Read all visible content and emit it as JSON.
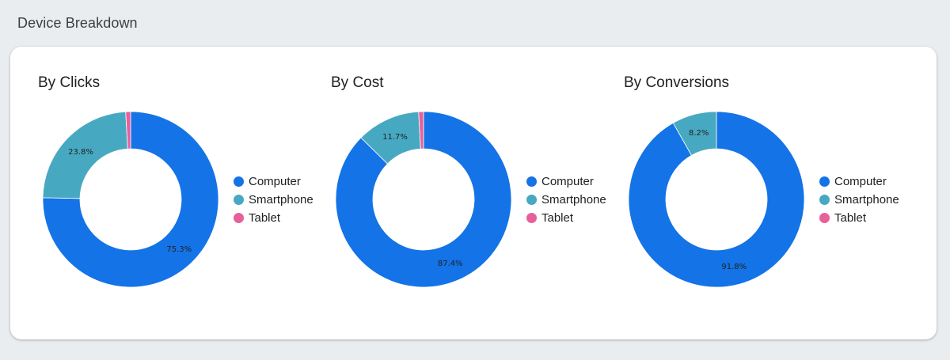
{
  "section_title": "Device Breakdown",
  "colors": {
    "computer": "#1473e6",
    "smartphone": "#47a9c1",
    "tablet": "#e8609a"
  },
  "chart_data": [
    {
      "type": "pie",
      "title": "By Clicks",
      "categories": [
        "Computer",
        "Smartphone",
        "Tablet"
      ],
      "values": [
        75.3,
        23.8,
        0.9
      ],
      "labels": [
        "75.3%",
        "23.8%",
        ""
      ],
      "legend": "right"
    },
    {
      "type": "pie",
      "title": "By Cost",
      "categories": [
        "Computer",
        "Smartphone",
        "Tablet"
      ],
      "values": [
        87.4,
        11.7,
        0.9
      ],
      "labels": [
        "87.4%",
        "11.7%",
        ""
      ],
      "legend": "right"
    },
    {
      "type": "pie",
      "title": "By Conversions",
      "categories": [
        "Computer",
        "Smartphone",
        "Tablet"
      ],
      "values": [
        91.8,
        8.2,
        0
      ],
      "labels": [
        "91.8%",
        "8.2%",
        ""
      ],
      "legend": "right"
    }
  ]
}
